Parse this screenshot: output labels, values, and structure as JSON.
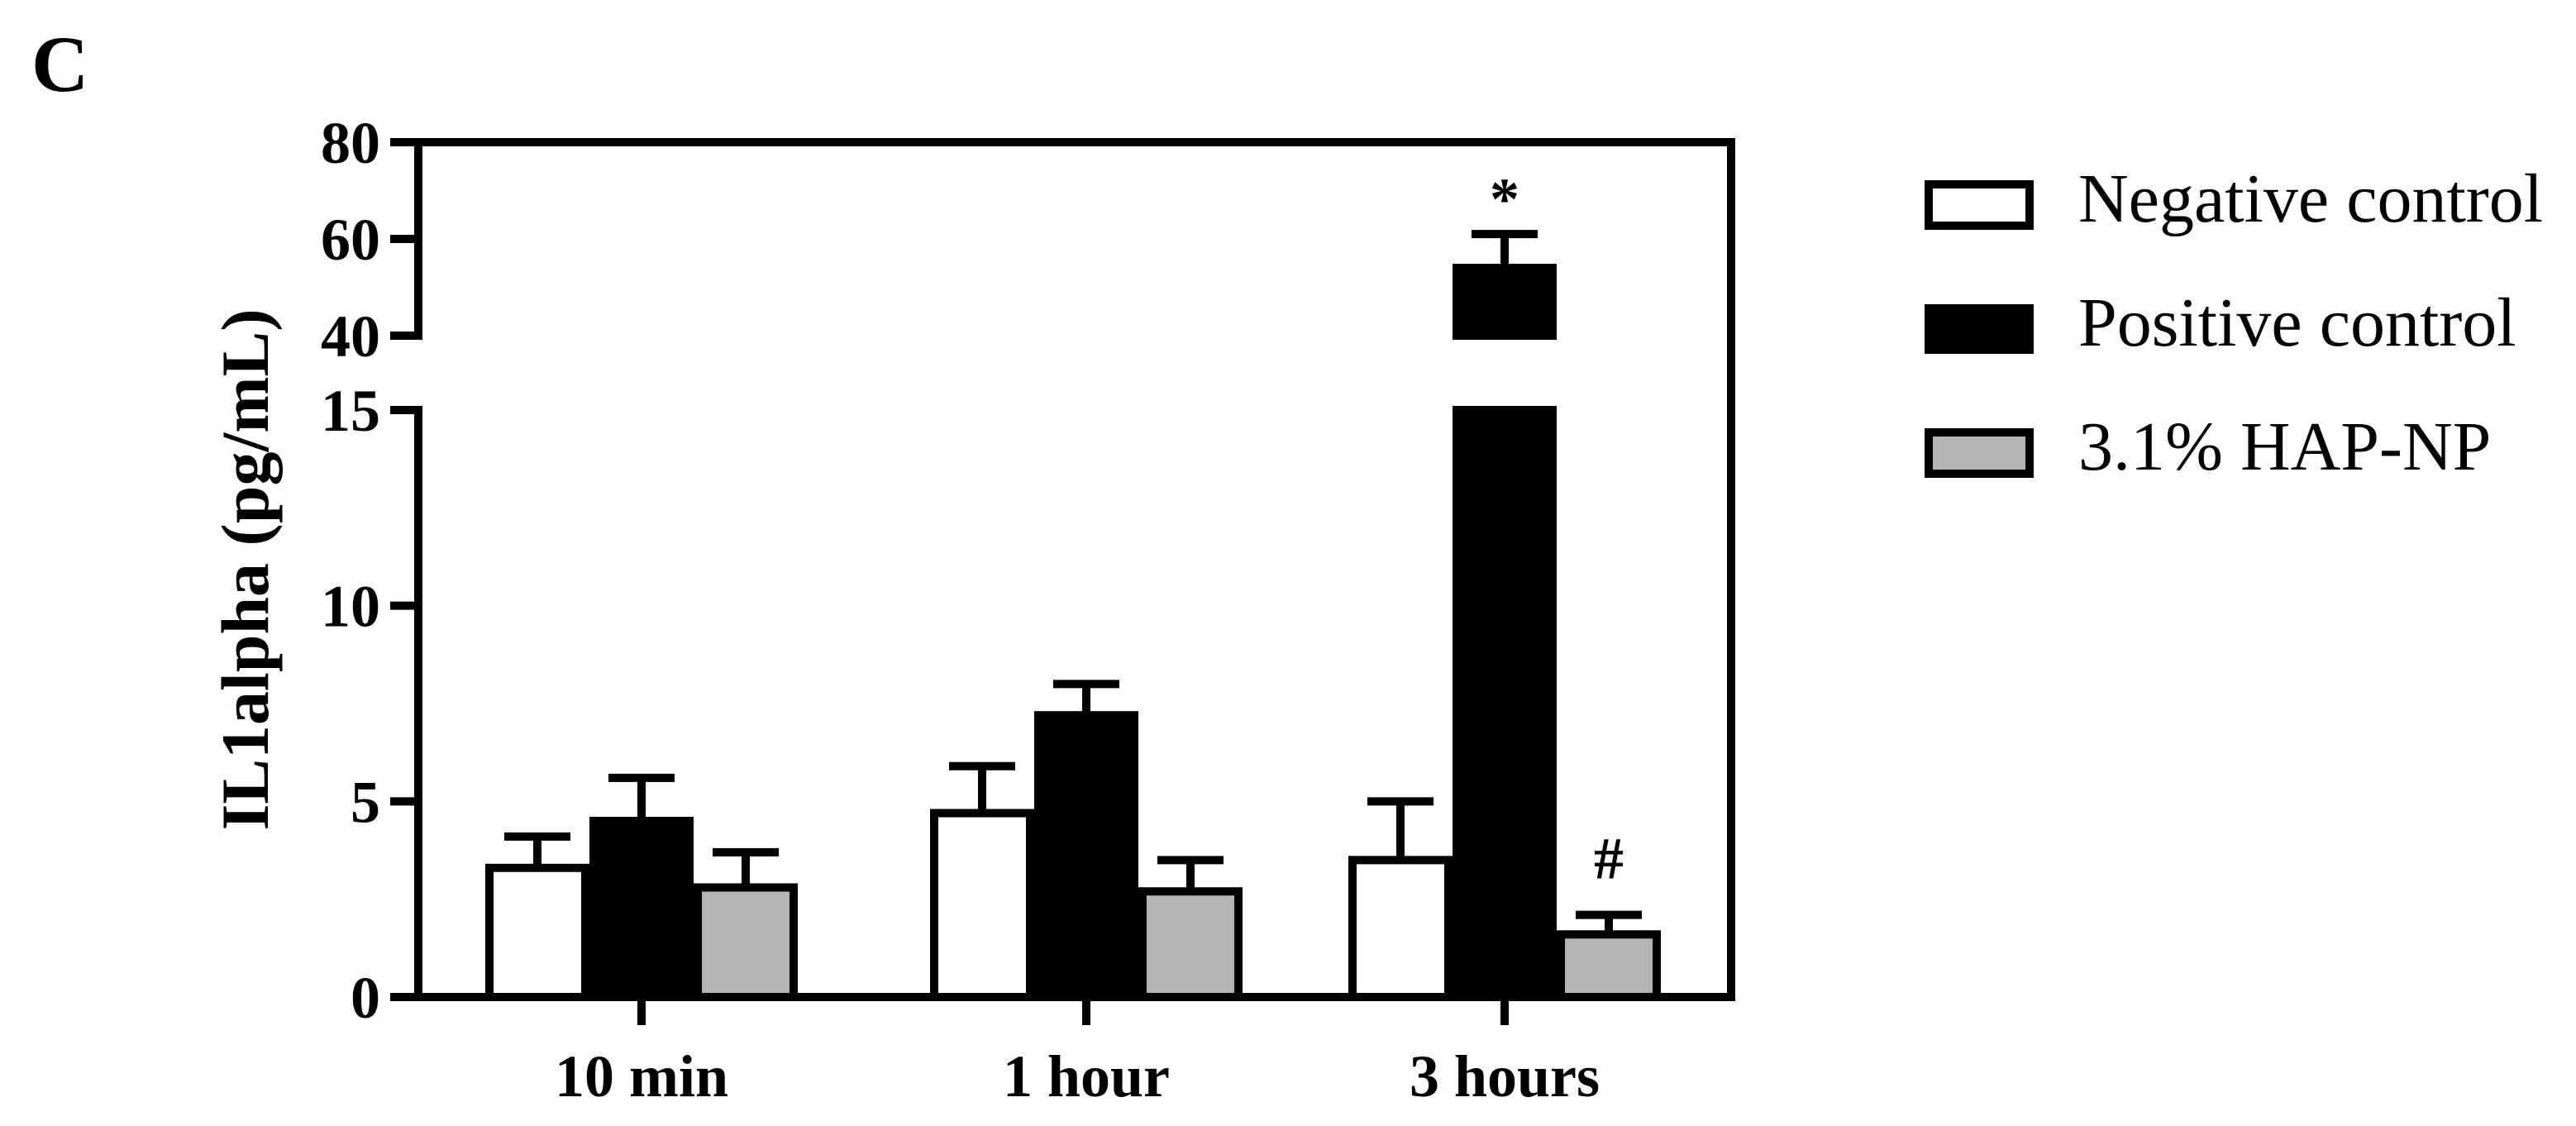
{
  "panel_label": "C",
  "legend": {
    "items": [
      {
        "label": "Negative control",
        "color": "#ffffff"
      },
      {
        "label": "Positive control",
        "color": "#000000"
      },
      {
        "label": "3.1% HAP-NP",
        "color": "#b4b4b4"
      }
    ]
  },
  "chart_data": {
    "type": "bar",
    "title": "",
    "xlabel": "",
    "ylabel": "IL1alpha (pg/mL)",
    "categories": [
      "10 min",
      "1 hour",
      "3 hours"
    ],
    "axis_break": {
      "lower_segment": [
        0,
        15
      ],
      "upper_segment": [
        40,
        80
      ]
    },
    "yticks_lower": [
      0,
      5,
      10,
      15
    ],
    "yticks_upper": [
      40,
      60,
      80
    ],
    "series": [
      {
        "name": "Negative control",
        "color": "#ffffff",
        "values": [
          3.3,
          4.7,
          3.5
        ],
        "errors": [
          0.8,
          1.2,
          1.5
        ]
      },
      {
        "name": "Positive control",
        "color": "#000000",
        "values": [
          4.5,
          7.2,
          54
        ],
        "errors": [
          1.1,
          0.8,
          7
        ]
      },
      {
        "name": "3.1% HAP-NP",
        "color": "#b4b4b4",
        "values": [
          2.8,
          2.7,
          1.6
        ],
        "errors": [
          0.9,
          0.8,
          0.5
        ]
      }
    ],
    "annotations": [
      {
        "text": "*",
        "series": "Positive control",
        "category": "3 hours"
      },
      {
        "text": "#",
        "series": "3.1% HAP-NP",
        "category": "3 hours"
      }
    ]
  }
}
